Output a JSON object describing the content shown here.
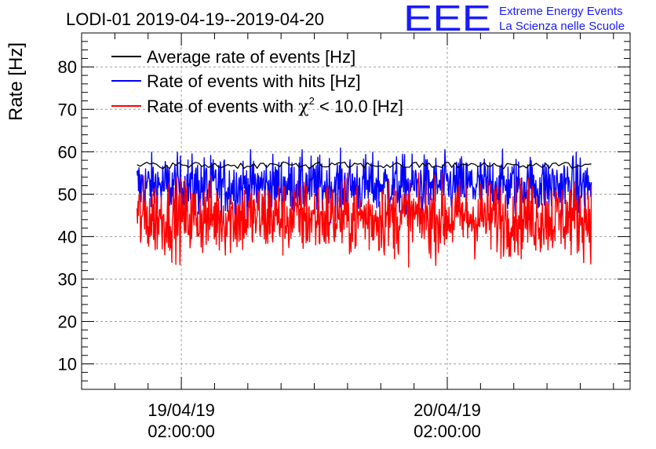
{
  "chart_data": {
    "type": "line",
    "title": "LODI-01 2019-04-19--2019-04-20",
    "ylabel": "Rate [Hz]",
    "xlabel": "",
    "ylim": [
      4,
      88
    ],
    "xlim_hours_since_2019-04-19T00:00": [
      -7.0,
      42.5
    ],
    "yticks": [
      10,
      20,
      30,
      40,
      50,
      60,
      70,
      80
    ],
    "yticklabels": [
      "10",
      "20",
      "30",
      "40",
      "50",
      "60",
      "70",
      "80"
    ],
    "xticks_hours": [
      2,
      26
    ],
    "xticklabels": [
      {
        "date": "19/04/19",
        "time": "02:00:00"
      },
      {
        "date": "20/04/19",
        "time": "02:00:00"
      }
    ],
    "grid": true,
    "legend_position": "top-left",
    "data_span_hours": [
      -2.0,
      39.0
    ],
    "series": [
      {
        "name": "Average rate of events [Hz]",
        "label_main": "Average rate of events [Hz]",
        "color": "#000000",
        "mean": 56.8,
        "spread": 0.8,
        "lowest": 55.5,
        "highest": 58.0
      },
      {
        "name": "Rate of events with hits [Hz]",
        "label_main": "Rate of events with hits [Hz]",
        "color": "#0000ff",
        "mean": 52.0,
        "spread": 3.5,
        "lowest": 42.0,
        "highest": 62.0
      },
      {
        "name": "Rate of events with χ² < 10.0 [Hz]",
        "label_pre": "Rate of events with ",
        "label_chi": "χ",
        "label_sup": "2",
        "label_post": " < 10.0 [Hz]",
        "color": "#ff0000",
        "mean": 44.5,
        "spread": 4.5,
        "lowest": 31.0,
        "highest": 55.0
      }
    ]
  },
  "logo": {
    "mark": "EEE",
    "line1": "Extreme Energy Events",
    "line2": "La Scienza nelle Scuole",
    "color": "#1a1aff"
  }
}
